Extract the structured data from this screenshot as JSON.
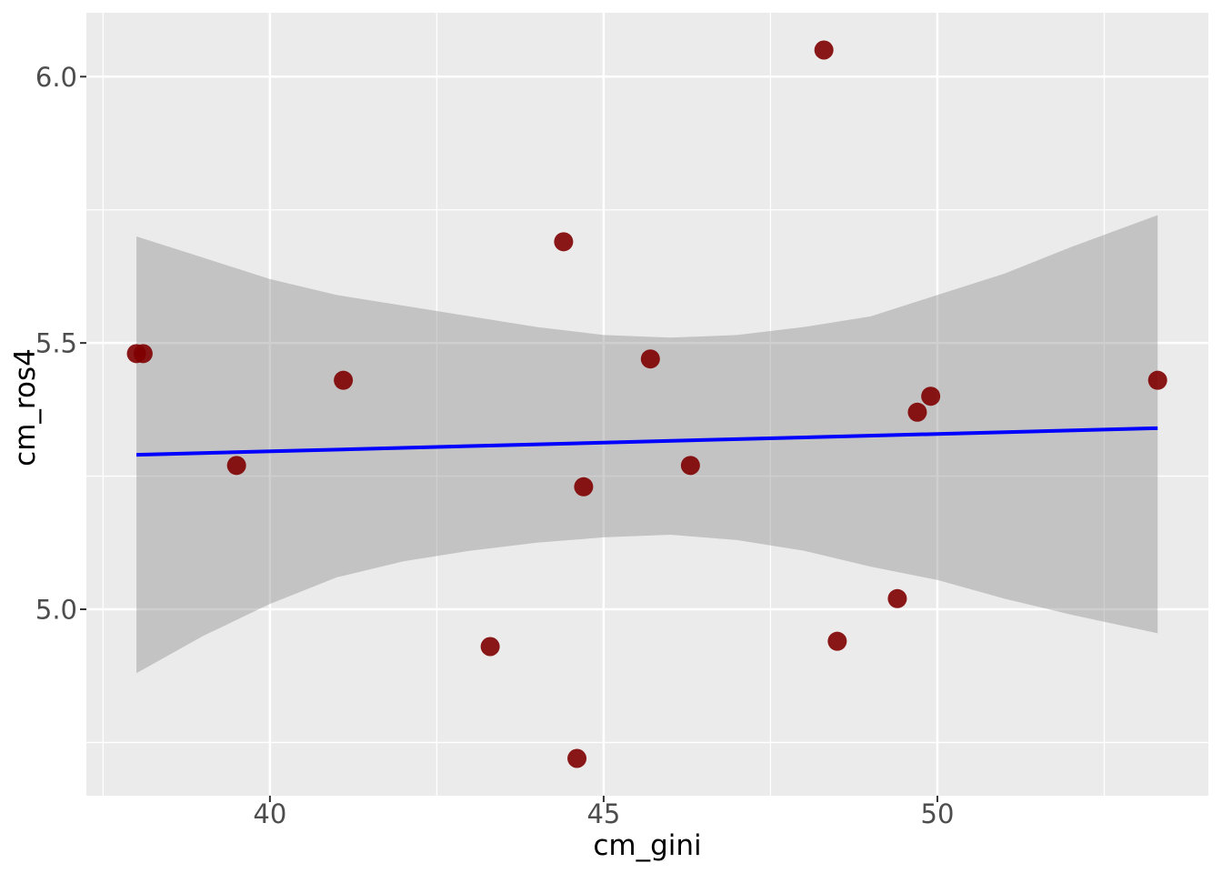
{
  "chart_data": {
    "type": "scatter",
    "title": "",
    "xlabel": "cm_gini",
    "ylabel": "cm_ros4",
    "x_ticks": [
      40,
      45,
      50
    ],
    "x_tick_labels": [
      "40",
      "45",
      "50"
    ],
    "x_minor_ticks": [
      37.5,
      42.5,
      47.5,
      52.5
    ],
    "y_ticks": [
      5.0,
      5.5,
      6.0
    ],
    "y_tick_labels": [
      "5.0",
      "5.5",
      "6.0"
    ],
    "y_minor_ticks": [
      4.75,
      5.25,
      5.75
    ],
    "xlim": [
      37.25,
      54.06
    ],
    "ylim": [
      4.65,
      6.12
    ],
    "grid": true,
    "legend": "none",
    "points": [
      [
        38.0,
        5.48
      ],
      [
        38.1,
        5.48
      ],
      [
        39.5,
        5.27
      ],
      [
        41.1,
        5.43
      ],
      [
        43.3,
        4.93
      ],
      [
        44.4,
        5.69
      ],
      [
        44.6,
        4.72
      ],
      [
        44.7,
        5.23
      ],
      [
        45.7,
        5.47
      ],
      [
        46.3,
        5.27
      ],
      [
        48.3,
        6.05
      ],
      [
        48.5,
        4.94
      ],
      [
        49.4,
        5.02
      ],
      [
        49.7,
        5.37
      ],
      [
        49.9,
        5.4
      ],
      [
        53.3,
        5.43
      ]
    ],
    "regression_line": {
      "x": [
        38.0,
        53.3
      ],
      "y": [
        5.29,
        5.34
      ],
      "color": "#0000FF",
      "width": 4
    },
    "confidence_band": {
      "upper": [
        [
          38.0,
          5.7
        ],
        [
          39.0,
          5.66
        ],
        [
          40.0,
          5.62
        ],
        [
          41.0,
          5.59
        ],
        [
          42.0,
          5.57
        ],
        [
          43.0,
          5.55
        ],
        [
          44.0,
          5.53
        ],
        [
          45.0,
          5.515
        ],
        [
          46.0,
          5.51
        ],
        [
          47.0,
          5.515
        ],
        [
          48.0,
          5.53
        ],
        [
          49.0,
          5.55
        ],
        [
          50.0,
          5.59
        ],
        [
          51.0,
          5.63
        ],
        [
          52.0,
          5.68
        ],
        [
          53.3,
          5.74
        ]
      ],
      "lower": [
        [
          38.0,
          4.88
        ],
        [
          39.0,
          4.95
        ],
        [
          40.0,
          5.01
        ],
        [
          41.0,
          5.06
        ],
        [
          42.0,
          5.09
        ],
        [
          43.0,
          5.11
        ],
        [
          44.0,
          5.125
        ],
        [
          45.0,
          5.135
        ],
        [
          46.0,
          5.14
        ],
        [
          47.0,
          5.13
        ],
        [
          48.0,
          5.11
        ],
        [
          49.0,
          5.08
        ],
        [
          50.0,
          5.055
        ],
        [
          51.0,
          5.02
        ],
        [
          52.0,
          4.99
        ],
        [
          53.3,
          4.955
        ]
      ],
      "fill": "#8C8C8C",
      "opacity": 0.42
    },
    "point_color": "#7F0000",
    "point_opacity": 0.9,
    "point_radius": 10.5,
    "panel_bg": "#EBEBEB",
    "grid_color": "#FFFFFF",
    "tick_mark_color": "#333333",
    "tick_label_color": "#4D4D4D",
    "axis_title_color": "#000000"
  }
}
